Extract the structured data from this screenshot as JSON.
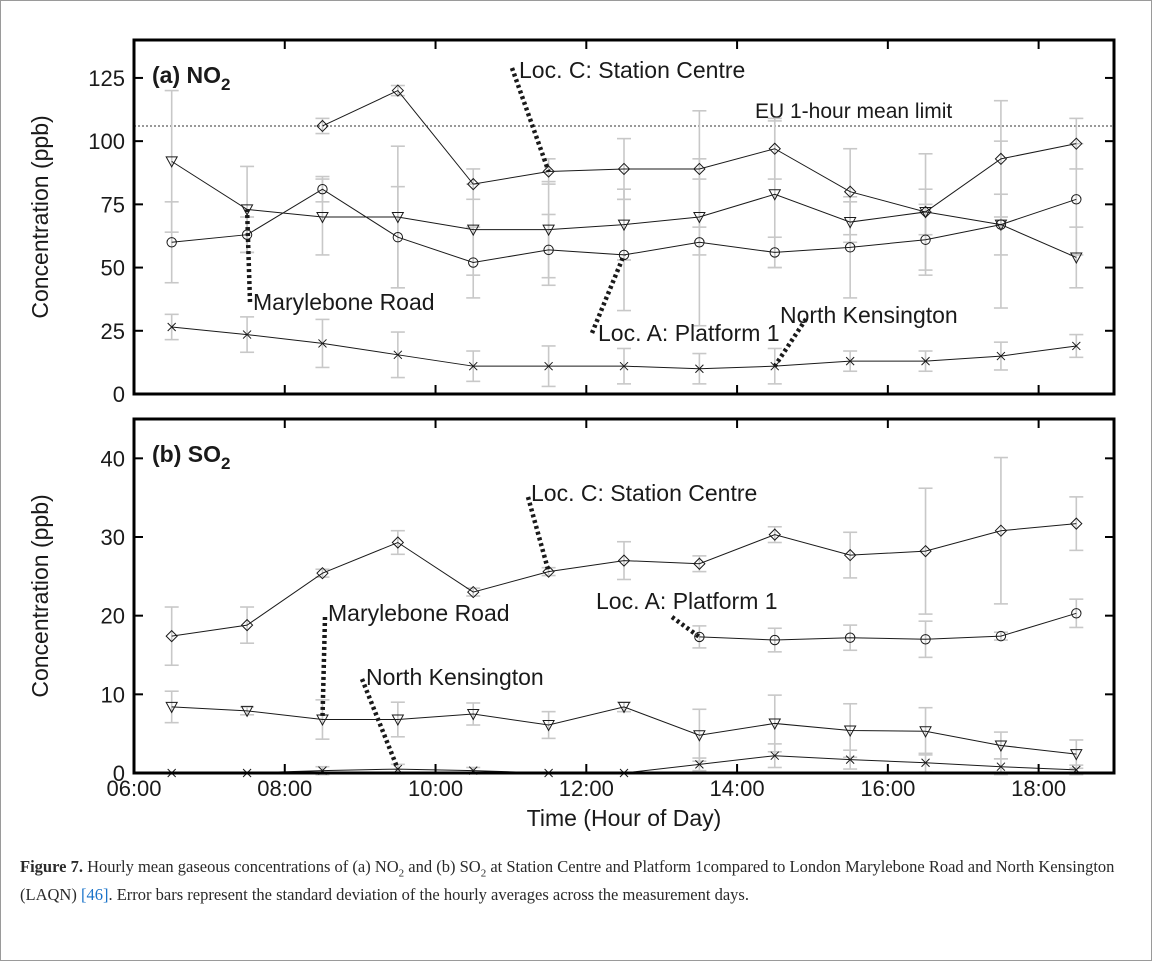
{
  "chart_data": [
    {
      "type": "line",
      "panel_label": "(a) NO",
      "panel_label_sub": "2",
      "ylabel": "Concentration (ppb)",
      "ylim": [
        0,
        140
      ],
      "yticks": [
        0,
        25,
        50,
        75,
        100,
        125
      ],
      "xlim": [
        6,
        19
      ],
      "reference_line": {
        "label": "EU 1-hour mean limit",
        "value": 106
      },
      "series": [
        {
          "name": "Loc. C: Station Centre",
          "marker": "diamond",
          "x": [
            8.5,
            9.5,
            10.5,
            11.5,
            12.5,
            13.5,
            14.5,
            15.5,
            16.5,
            17.5,
            18.5
          ],
          "y": [
            106,
            120,
            83,
            88,
            89,
            89,
            97,
            80,
            72,
            93,
            99
          ],
          "err": [
            3,
            2,
            6,
            5,
            12,
            23,
            12,
            17,
            23,
            23,
            10
          ]
        },
        {
          "name": "Marylebone Road",
          "marker": "triangle",
          "x": [
            6.5,
            7.5,
            8.5,
            9.5,
            10.5,
            11.5,
            12.5,
            13.5,
            14.5,
            15.5,
            16.5,
            17.5,
            18.5
          ],
          "y": [
            92,
            73,
            70,
            70,
            65,
            65,
            67,
            70,
            79,
            68,
            72,
            67,
            54
          ],
          "err": [
            28,
            17,
            15,
            28,
            18,
            19,
            14,
            15,
            29,
            8,
            9,
            12,
            12
          ]
        },
        {
          "name": "Loc. A: Platform 1",
          "marker": "circle",
          "x": [
            6.5,
            7.5,
            8.5,
            9.5,
            10.5,
            11.5,
            12.5,
            13.5,
            14.5,
            15.5,
            16.5,
            17.5,
            18.5
          ],
          "y": [
            60,
            63,
            81,
            62,
            52,
            57,
            55,
            60,
            56,
            58,
            61,
            67,
            77
          ],
          "err": [
            16,
            7,
            5,
            20,
            14,
            14,
            22,
            33,
            6,
            20,
            14,
            33,
            22
          ]
        },
        {
          "name": "North Kensington",
          "marker": "x",
          "x": [
            6.5,
            7.5,
            8.5,
            9.5,
            10.5,
            11.5,
            12.5,
            13.5,
            14.5,
            15.5,
            16.5,
            17.5,
            18.5
          ],
          "y": [
            26.5,
            23.5,
            20,
            15.5,
            11,
            11,
            11,
            10,
            11,
            13,
            13,
            15,
            19
          ],
          "err": [
            5,
            7,
            9.5,
            9,
            6,
            8,
            7,
            6,
            7,
            4,
            4,
            5.5,
            4.5
          ]
        }
      ],
      "annotations": [
        {
          "text": "Loc. C: Station Centre",
          "series": 0
        },
        {
          "text": "Marylebone Road",
          "series": 1
        },
        {
          "text": "Loc. A: Platform 1",
          "series": 2
        },
        {
          "text": "North Kensington",
          "series": 3
        }
      ]
    },
    {
      "type": "line",
      "panel_label": "(b) SO",
      "panel_label_sub": "2",
      "ylabel": "Concentration (ppb)",
      "xlabel": "Time (Hour of Day)",
      "ylim": [
        0,
        45
      ],
      "yticks": [
        0,
        10,
        20,
        30,
        40
      ],
      "xlim": [
        6,
        19
      ],
      "xticks": [
        "06:00",
        "08:00",
        "10:00",
        "12:00",
        "14:00",
        "16:00",
        "18:00"
      ],
      "series": [
        {
          "name": "Loc. C: Station Centre",
          "marker": "diamond",
          "x": [
            6.5,
            7.5,
            8.5,
            9.5,
            10.5,
            11.5,
            12.5,
            13.5,
            14.5,
            15.5,
            16.5,
            17.5,
            18.5
          ],
          "y": [
            17.4,
            18.8,
            25.4,
            29.3,
            23.0,
            25.6,
            27.0,
            26.6,
            30.3,
            27.7,
            28.2,
            30.8,
            31.7
          ],
          "err": [
            3.7,
            2.3,
            0.5,
            1.5,
            0.5,
            0.5,
            2.4,
            1.0,
            1.0,
            2.9,
            8.0,
            9.3,
            3.4
          ]
        },
        {
          "name": "Loc. A: Platform 1",
          "marker": "circle",
          "x": [
            13.5,
            14.5,
            15.5,
            16.5,
            17.5,
            18.5
          ],
          "y": [
            17.3,
            16.9,
            17.2,
            17.0,
            17.4,
            20.3
          ],
          "err": [
            1.4,
            1.5,
            1.6,
            2.3,
            0.5,
            1.8
          ]
        },
        {
          "name": "Marylebone Road",
          "marker": "triangle",
          "x": [
            6.5,
            7.5,
            8.5,
            9.5,
            10.5,
            11.5,
            12.5,
            13.5,
            14.5,
            15.5,
            16.5,
            17.5,
            18.5
          ],
          "y": [
            8.4,
            7.9,
            6.8,
            6.8,
            7.5,
            6.1,
            8.4,
            4.8,
            6.3,
            5.4,
            5.3,
            3.5,
            2.4
          ],
          "err": [
            2.0,
            0.5,
            2.5,
            2.2,
            1.4,
            1.7,
            0.6,
            3.3,
            3.6,
            3.4,
            3.0,
            1.7,
            1.8
          ]
        },
        {
          "name": "North Kensington",
          "marker": "x",
          "x": [
            6.5,
            7.5,
            8.5,
            9.5,
            10.5,
            11.5,
            12.5,
            13.5,
            14.5,
            15.5,
            16.5,
            17.5,
            18.5
          ],
          "y": [
            0,
            0,
            0.3,
            0.5,
            0.3,
            0,
            0,
            1.1,
            2.2,
            1.7,
            1.3,
            0.8,
            0.4
          ],
          "err": [
            0,
            0,
            0.5,
            0.6,
            0.4,
            0,
            0,
            0.8,
            1.5,
            1.2,
            1.2,
            1.0,
            0.6
          ]
        }
      ],
      "annotations": [
        {
          "text": "Loc. C: Station Centre",
          "series": 0
        },
        {
          "text": "Loc. A: Platform 1",
          "series": 1
        },
        {
          "text": "Marylebone Road",
          "series": 2
        },
        {
          "text": "North Kensington",
          "series": 3
        }
      ]
    }
  ],
  "caption": {
    "figure_label": "Figure 7.",
    "part1": " Hourly mean gaseous concentrations of (a) NO",
    "sub1": "2",
    "part2": " and (b) SO",
    "sub2": "2",
    "part3": " at Station Centre and Platform 1compared to London Marylebone Road and North Kensington (LAQN) ",
    "ref": "[46]",
    "part4": ". Error bars represent the standard deviation of the hourly averages across the measurement days."
  },
  "colors": {
    "line": "#1a1a1a",
    "errorbar": "#c8c8c8",
    "frame": "#000000"
  }
}
